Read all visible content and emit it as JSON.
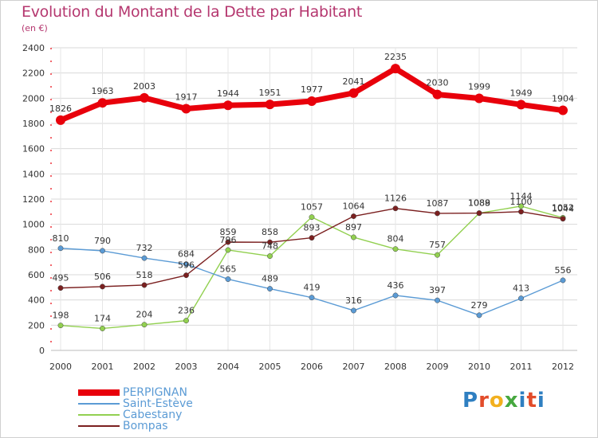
{
  "header": {
    "title": "Evolution du Montant de la Dette par Habitant",
    "subtitle": "(en €)"
  },
  "logo": {
    "text": "Proxiti"
  },
  "chart_data": {
    "type": "line",
    "title": "Evolution du Montant de la Dette par Habitant",
    "subtitle": "(en €)",
    "xlabel": "",
    "ylabel": "",
    "ylim": [
      0,
      2400
    ],
    "yticks": [
      0,
      200,
      400,
      600,
      800,
      1000,
      1200,
      1400,
      1600,
      1800,
      2000,
      2200,
      2400
    ],
    "grid": true,
    "legend_position": "bottom-left",
    "x": [
      "2000",
      "2001",
      "2002",
      "2003",
      "2004",
      "2005",
      "2006",
      "2007",
      "2008",
      "2009",
      "2010",
      "2011",
      "2012"
    ],
    "series": [
      {
        "name": "PERPIGNAN",
        "color": "#e8000b",
        "values": [
          1826,
          1963,
          2003,
          1917,
          1944,
          1951,
          1977,
          2041,
          2235,
          2030,
          1999,
          1949,
          1904
        ],
        "labels": [
          "1826",
          "1963",
          "2003",
          "1917",
          "1944",
          "1951",
          "1977",
          "2041",
          "2235",
          "2030",
          "1999",
          "1949",
          "1904"
        ]
      },
      {
        "name": "Saint-Estève",
        "color": "#5b9bd5",
        "values": [
          810,
          790,
          732,
          684,
          565,
          489,
          419,
          316,
          436,
          397,
          279,
          413,
          556
        ],
        "labels": [
          "810",
          "790",
          "732",
          "684",
          "565",
          "489",
          "419",
          "316",
          "436",
          "397",
          "279",
          "413",
          "556"
        ]
      },
      {
        "name": "Cabestany",
        "color": "#92d050",
        "values": [
          198,
          174,
          204,
          236,
          796,
          748,
          1057,
          897,
          804,
          757,
          1088,
          1144,
          1052
        ],
        "labels": [
          "198",
          "174",
          "204",
          "236",
          "796",
          "748",
          "1057",
          "897",
          "804",
          "757",
          "1088",
          "1144",
          "1052"
        ]
      },
      {
        "name": "Bompas",
        "color": "#7b2020",
        "values": [
          495,
          506,
          518,
          596,
          859,
          858,
          893,
          1064,
          1126,
          1087,
          1089,
          1100,
          1044
        ],
        "labels": [
          "495",
          "506",
          "518",
          "596",
          "859",
          "858",
          "893",
          "1064",
          "1126",
          "1087",
          "1089",
          "1100",
          "1044"
        ]
      }
    ]
  }
}
